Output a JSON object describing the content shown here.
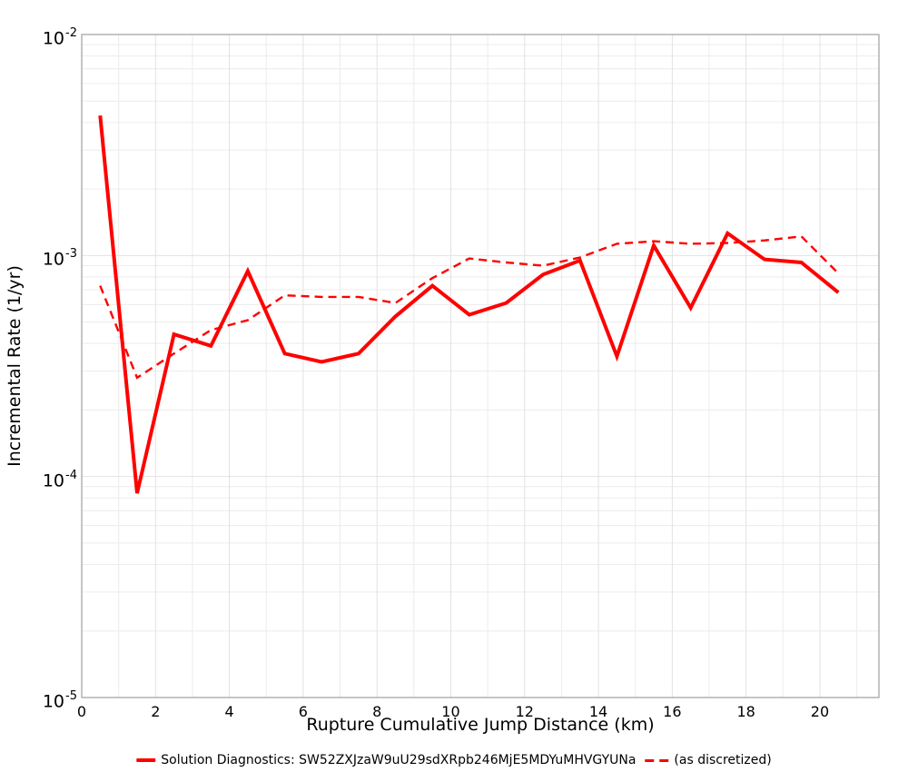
{
  "figure": {
    "background": "#ffffff",
    "line_red": "#ff0000",
    "grid_minor_color": "#ececec",
    "grid_major_color": "#e2e2e2",
    "spine_color": "#a6a6a6",
    "text_color": "#000000"
  },
  "axes": {
    "x_label": "Rupture Cumulative Jump Distance (km)",
    "y_label": "Incremental Rate (1/yr)",
    "x_tick_values": [
      0,
      2,
      4,
      6,
      8,
      10,
      12,
      14,
      16,
      18,
      20
    ],
    "y_tick_labels": [
      {
        "base": "10",
        "exp": "-2",
        "value": 0.01
      },
      {
        "base": "10",
        "exp": "-3",
        "value": 0.001
      },
      {
        "base": "10",
        "exp": "-4",
        "value": 0.0001
      },
      {
        "base": "10",
        "exp": "-5",
        "value": 1e-05
      }
    ]
  },
  "legend": {
    "solid_label": "Solution Diagnostics: SW52ZXJzaW9uU29sdXRpb246MjE5MDYuMHVGYUNa",
    "dashed_label": "(as discretized)"
  },
  "chart_data": {
    "type": "line",
    "title": "",
    "xlabel": "Rupture Cumulative Jump Distance (km)",
    "ylabel": "Incremental Rate (1/yr)",
    "x_range": [
      0,
      21.6
    ],
    "y_range": [
      1e-05,
      0.01
    ],
    "y_scale": "log",
    "grid": true,
    "legend_position": "bottom-center",
    "x": [
      0.5,
      1.5,
      2.5,
      3.5,
      4.5,
      5.5,
      6.5,
      7.5,
      8.5,
      9.5,
      10.5,
      11.5,
      12.5,
      13.5,
      14.5,
      15.5,
      16.5,
      17.5,
      18.5,
      19.5,
      20.5
    ],
    "series": [
      {
        "name": "Solution Diagnostics: SW52ZXJzaW9uU29sdXRpb246MjE5MDYuMHVGYUNa",
        "style": "solid",
        "color": "#ff0000",
        "width": 4,
        "values": [
          0.0043,
          8.4e-05,
          0.00044,
          0.00039,
          0.00085,
          0.00036,
          0.00033,
          0.00036,
          0.00053,
          0.00073,
          0.00054,
          0.00061,
          0.00082,
          0.00095,
          0.00035,
          0.00111,
          0.00058,
          0.00126,
          0.00096,
          0.00093,
          0.00068
        ]
      },
      {
        "name": "(as discretized)",
        "style": "dashed",
        "color": "#ff0000",
        "width": 2.4,
        "values": [
          0.00073,
          0.00028,
          0.00036,
          0.00046,
          0.00051,
          0.00066,
          0.00065,
          0.00065,
          0.00061,
          0.00079,
          0.00097,
          0.00093,
          0.0009,
          0.00098,
          0.00113,
          0.00116,
          0.00113,
          0.00114,
          0.00117,
          0.00122,
          0.00083
        ]
      }
    ]
  }
}
